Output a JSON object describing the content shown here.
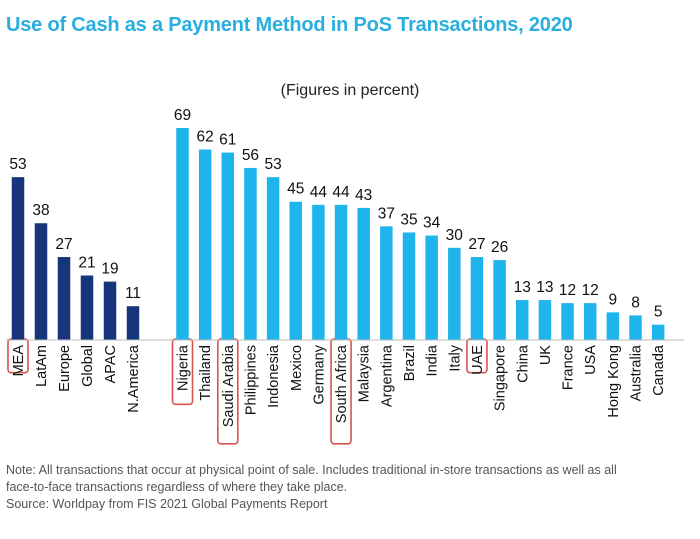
{
  "title": "Use of Cash as a Payment Method in PoS Transactions, 2020",
  "subtitle": "(Figures in percent)",
  "footnote": {
    "note_line1": "Note: All transactions that occur at physical point of sale. Includes traditional in-store transactions as well as all",
    "note_line2": "face-to-face transactions regardless of where they take place.",
    "source": "Source: Worldpay from FIS 2021 Global Payments Report"
  },
  "colors": {
    "title": "#29aee0",
    "region_bar": "#16357a",
    "country_bar": "#1fb5ec",
    "highlight_box": "#d9534f",
    "highlight_text": "#8a6d1f"
  },
  "chart_data": {
    "type": "bar",
    "title": "Use of Cash as a Payment Method in PoS Transactions, 2020",
    "subtitle": "(Figures in percent)",
    "xlabel": "",
    "ylabel": "",
    "ylim": [
      0,
      69
    ],
    "grid": false,
    "legend": "none",
    "groups": [
      {
        "name": "",
        "color": "#16357a",
        "categories": [
          "MEA",
          "LatAm",
          "Europe",
          "Global",
          "APAC",
          "N.America"
        ],
        "values": [
          53,
          38,
          27,
          21,
          19,
          11
        ],
        "highlighted": [
          "MEA"
        ]
      },
      {
        "name": "",
        "color": "#1fb5ec",
        "categories": [
          "Nigeria",
          "Thailand",
          "Saudi Arabia",
          "Philippines",
          "Indonesia",
          "Mexico",
          "Germany",
          "South Africa",
          "Malaysia",
          "Argentina",
          "Brazil",
          "India",
          "Italy",
          "UAE",
          "Singapore",
          "China",
          "UK",
          "France",
          "USA",
          "Hong Kong",
          "Australia",
          "Canada"
        ],
        "values": [
          69,
          62,
          61,
          56,
          53,
          45,
          44,
          44,
          43,
          37,
          35,
          34,
          30,
          27,
          26,
          13,
          13,
          12,
          12,
          9,
          8,
          5
        ],
        "highlighted": [
          "Nigeria",
          "Saudi Arabia",
          "South Africa",
          "UAE"
        ]
      }
    ]
  }
}
